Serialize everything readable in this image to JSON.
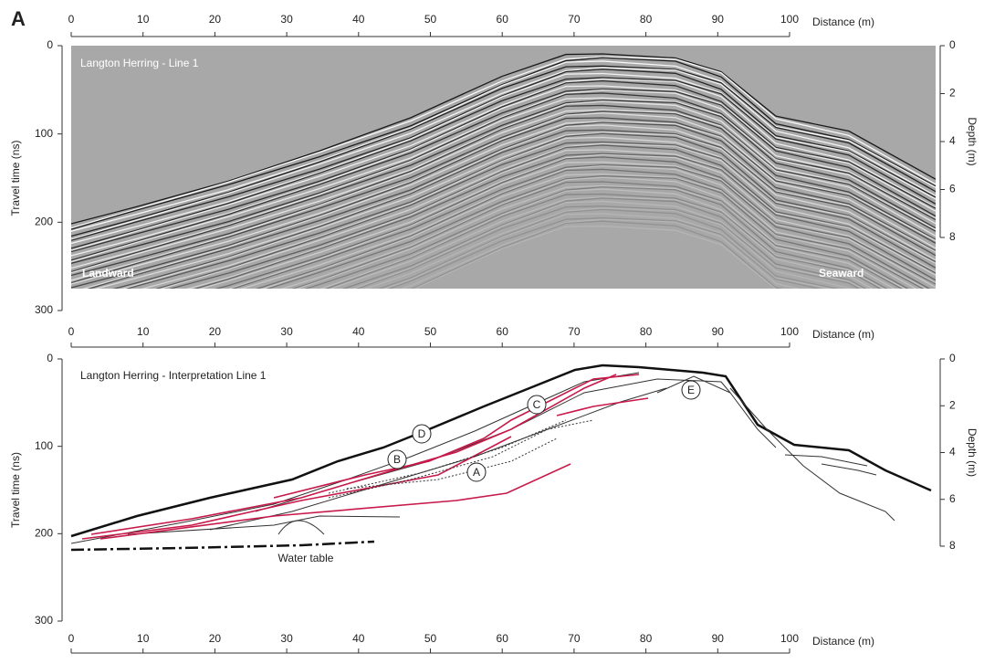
{
  "figure_label": "A",
  "distance_axis": {
    "label": "Distance (m)",
    "lim": [
      0,
      100
    ],
    "ticks": [
      0,
      10,
      20,
      30,
      40,
      50,
      60,
      70,
      80,
      90,
      100
    ]
  },
  "panels": [
    {
      "title": "Langton Herring - Line 1",
      "y_label": "Travel time (ns)",
      "ylim": [
        0,
        300
      ],
      "yticks": [
        0,
        100,
        200,
        300
      ],
      "y2_label": "Depth (m)",
      "y2lim": [
        0,
        8
      ],
      "y2ticks": [
        0,
        2,
        4,
        6,
        8
      ],
      "annotations": [
        "Landward",
        "Seaward"
      ]
    },
    {
      "title": "Langton Herring - Interpretation Line 1",
      "y_label": "Travel time (ns)",
      "ylim": [
        0,
        300
      ],
      "yticks": [
        0,
        100,
        200,
        300
      ],
      "y2_label": "Depth (m)",
      "y2lim": [
        0,
        8
      ],
      "y2ticks": [
        0,
        2,
        4,
        6,
        8
      ],
      "annotations": [
        "A",
        "B",
        "C",
        "D",
        "E",
        "Water table"
      ]
    }
  ]
}
